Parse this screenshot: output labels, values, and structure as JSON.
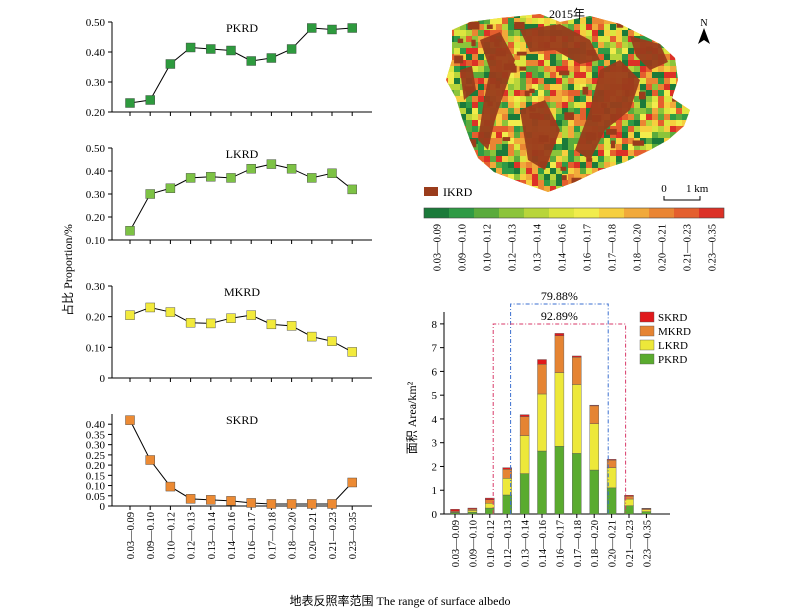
{
  "figure": {
    "xlabel": "地表反照率范围 The range of surface albedo",
    "ylabel_left": "占比 Proportion/%",
    "categories": [
      "0.03—0.09",
      "0.09—0.10",
      "0.10—0.12",
      "0.12—0.13",
      "0.13—0.14",
      "0.14—0.16",
      "0.16—0.17",
      "0.17—0.18",
      "0.18—0.20",
      "0.20—0.21",
      "0.21—0.23",
      "0.23—0.35"
    ]
  },
  "map": {
    "year": "2015年",
    "north": "N",
    "scale": {
      "zero": "0",
      "label": "1 km"
    },
    "ikrd_label": "IKRD",
    "colors": {
      "ikrd": "#9a3c1c",
      "ramp": [
        "#1b7a3a",
        "#2f9a45",
        "#5aab3c",
        "#8cc43a",
        "#b8d53a",
        "#dde53f",
        "#f1ec4c",
        "#f6cf3f",
        "#f1a93a",
        "#ea8533",
        "#e45f2e",
        "#dc3127"
      ]
    }
  },
  "chart_data": [
    {
      "type": "line",
      "title": "PKRD",
      "color": "#2e9a3e",
      "categories": [
        "0.03—0.09",
        "0.09—0.10",
        "0.10—0.12",
        "0.12—0.13",
        "0.13—0.14",
        "0.14—0.16",
        "0.16—0.17",
        "0.17—0.18",
        "0.18—0.20",
        "0.20—0.21",
        "0.21—0.23",
        "0.23—0.35"
      ],
      "values": [
        0.23,
        0.24,
        0.36,
        0.415,
        0.41,
        0.405,
        0.37,
        0.38,
        0.41,
        0.48,
        0.475,
        0.48
      ],
      "ylim": [
        0.2,
        0.5
      ],
      "yticks": [
        "0.20",
        "0.30",
        "0.40",
        "0.50"
      ],
      "tick_values": [
        0.2,
        0.3,
        0.4,
        0.5
      ]
    },
    {
      "type": "line",
      "title": "LKRD",
      "color": "#7dc245",
      "categories": [
        "0.03—0.09",
        "0.09—0.10",
        "0.10—0.12",
        "0.12—0.13",
        "0.13—0.14",
        "0.14—0.16",
        "0.16—0.17",
        "0.17—0.18",
        "0.18—0.20",
        "0.20—0.21",
        "0.21—0.23",
        "0.23—0.35"
      ],
      "values": [
        0.14,
        0.3,
        0.325,
        0.37,
        0.375,
        0.37,
        0.41,
        0.43,
        0.41,
        0.37,
        0.39,
        0.32
      ],
      "ylim": [
        0.1,
        0.5
      ],
      "yticks": [
        "0.10",
        "0.20",
        "0.30",
        "0.40",
        "0.50"
      ],
      "tick_values": [
        0.1,
        0.2,
        0.3,
        0.4,
        0.5
      ]
    },
    {
      "type": "line",
      "title": "MKRD",
      "color": "#f2ea3c",
      "categories": [
        "0.03—0.09",
        "0.09—0.10",
        "0.10—0.12",
        "0.12—0.13",
        "0.13—0.14",
        "0.14—0.16",
        "0.16—0.17",
        "0.17—0.18",
        "0.18—0.20",
        "0.20—0.21",
        "0.21—0.23",
        "0.23—0.35"
      ],
      "values": [
        0.205,
        0.23,
        0.215,
        0.18,
        0.178,
        0.195,
        0.205,
        0.175,
        0.17,
        0.135,
        0.12,
        0.085
      ],
      "ylim": [
        0,
        0.3
      ],
      "yticks": [
        "0",
        "0.10",
        "0.20",
        "0.30"
      ],
      "tick_values": [
        0,
        0.1,
        0.2,
        0.3
      ]
    },
    {
      "type": "line",
      "title": "SKRD",
      "color": "#ec8a33",
      "categories": [
        "0.03—0.09",
        "0.09—0.10",
        "0.10—0.12",
        "0.12—0.13",
        "0.13—0.14",
        "0.14—0.16",
        "0.16—0.17",
        "0.17—0.18",
        "0.18—0.20",
        "0.20—0.21",
        "0.21—0.23",
        "0.23—0.35"
      ],
      "values": [
        0.42,
        0.225,
        0.095,
        0.035,
        0.03,
        0.025,
        0.015,
        0.01,
        0.01,
        0.01,
        0.01,
        0.115
      ],
      "ylim": [
        0,
        0.45
      ],
      "yticks": [
        "0",
        "0.05",
        "0.10",
        "0.15",
        "0.20",
        "0.25",
        "0.30",
        "0.35",
        "0.40"
      ],
      "tick_values": [
        0,
        0.05,
        0.1,
        0.15,
        0.2,
        0.25,
        0.3,
        0.35,
        0.4
      ]
    },
    {
      "type": "bar",
      "stacked": true,
      "ylabel": "面积 Area/km²",
      "categories": [
        "0.03—0.09",
        "0.09—0.10",
        "0.10—0.12",
        "0.12—0.13",
        "0.13—0.14",
        "0.14—0.16",
        "0.16—0.17",
        "0.17—0.18",
        "0.18—0.20",
        "0.20—0.21",
        "0.21—0.23",
        "0.23—0.35"
      ],
      "ylim": [
        0,
        8.5
      ],
      "yticks": [
        "0",
        "1",
        "2",
        "3",
        "4",
        "5",
        "6",
        "7",
        "8"
      ],
      "tick_values": [
        0,
        1,
        2,
        3,
        4,
        5,
        6,
        7,
        8
      ],
      "series": [
        {
          "name": "PKRD",
          "color": "#5aab2f",
          "values": [
            0.05,
            0.08,
            0.25,
            0.8,
            1.7,
            2.65,
            2.85,
            2.55,
            1.85,
            1.1,
            0.35,
            0.1
          ]
        },
        {
          "name": "LKRD",
          "color": "#ede83a",
          "values": [
            0.03,
            0.07,
            0.2,
            0.7,
            1.6,
            2.4,
            3.1,
            2.9,
            1.95,
            0.85,
            0.28,
            0.08
          ]
        },
        {
          "name": "MKRD",
          "color": "#e58433",
          "values": [
            0.04,
            0.06,
            0.15,
            0.38,
            0.8,
            1.25,
            1.55,
            1.15,
            0.75,
            0.32,
            0.12,
            0.04
          ]
        },
        {
          "name": "SKRD",
          "color": "#e0191c",
          "values": [
            0.08,
            0.04,
            0.07,
            0.07,
            0.08,
            0.2,
            0.1,
            0.05,
            0.03,
            0.03,
            0.04,
            0.02
          ]
        }
      ],
      "annotations": [
        {
          "text": "79.88%",
          "from": 4,
          "to": 8,
          "color": "#3b6fd0"
        },
        {
          "text": "92.89%",
          "from": 3,
          "to": 9,
          "color": "#d83a6a"
        }
      ]
    }
  ]
}
